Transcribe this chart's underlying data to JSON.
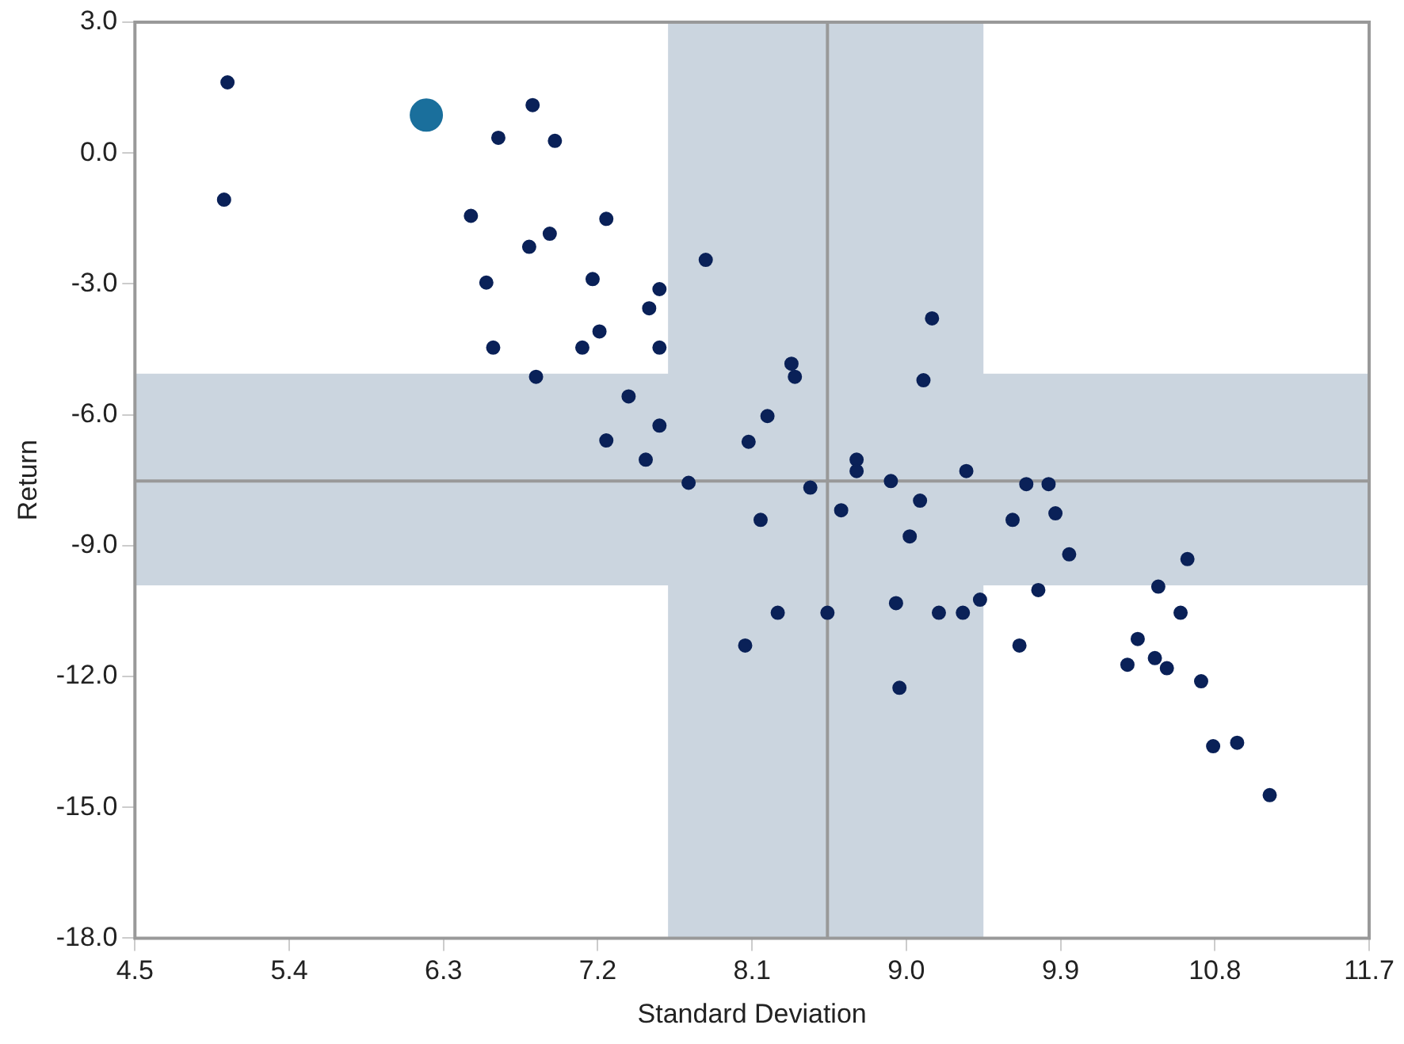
{
  "chart_data": {
    "type": "scatter",
    "xlabel": "Standard Deviation",
    "ylabel": "Return",
    "xlim": [
      4.5,
      11.7
    ],
    "xticks": [
      4.5,
      5.4,
      6.3,
      7.2,
      8.1,
      {
        "value": 9,
        "label": "9.0"
      },
      9.9,
      10.8,
      11.7
    ],
    "ylim": [
      -18,
      3
    ],
    "yticks": [
      {
        "value": -18,
        "label": "-18.0"
      },
      {
        "value": -15,
        "label": "-15.0"
      },
      {
        "value": -12,
        "label": "-12.0"
      },
      {
        "value": -9,
        "label": "-9.0"
      },
      {
        "value": -6,
        "label": "-6.0"
      },
      {
        "value": -3,
        "label": "-3.0"
      },
      {
        "value": 0,
        "label": "0.0"
      },
      {
        "value": 3,
        "label": "3.0"
      }
    ],
    "grid": false,
    "legend": false,
    "marker": "circle",
    "bands": [
      {
        "axis": "x",
        "from": 7.61,
        "to": 9.45,
        "color": "#cbd5df"
      },
      {
        "axis": "y",
        "from": -9.91,
        "to": -5.06,
        "color": "#cbd5df"
      }
    ],
    "ref_lines": [
      {
        "axis": "x",
        "value": 8.54,
        "color": "#999999"
      },
      {
        "axis": "y",
        "value": -7.52,
        "color": "#999999"
      }
    ],
    "series": [
      {
        "color": "#0a2158",
        "x": [
          5.04,
          5.02,
          6.82,
          6.62,
          6.95,
          6.46,
          7.25,
          6.92,
          6.8,
          7.83,
          6.55,
          7.17,
          7.56,
          7.5,
          6.59,
          7.11,
          7.21,
          7.56,
          6.84,
          7.38,
          7.56,
          7.25,
          7.48,
          7.73,
          9.15,
          8.33,
          8.35,
          9.1,
          8.19,
          8.08,
          8.71,
          8.71,
          8.91,
          9.35,
          8.44,
          8.62,
          8.15,
          9.02,
          9.08,
          9.62,
          9.7,
          9.83,
          9.87,
          9.95,
          9.77,
          8.94,
          8.25,
          8.54,
          9.19,
          9.33,
          9.43,
          8.06,
          9.66,
          8.96,
          10.64,
          10.47,
          10.6,
          10.35,
          10.29,
          10.45,
          10.52,
          10.72,
          10.79,
          10.93,
          11.12
        ],
        "values": [
          1.62,
          -1.07,
          1.1,
          0.35,
          0.28,
          -1.44,
          -1.51,
          -1.85,
          -2.15,
          -2.45,
          -2.97,
          -2.89,
          -3.12,
          -3.56,
          -4.46,
          -4.46,
          -4.09,
          -4.46,
          -5.13,
          -5.58,
          -6.25,
          -6.59,
          -7.03,
          -7.56,
          -3.79,
          -4.83,
          -5.13,
          -5.21,
          -6.03,
          -6.62,
          -7.03,
          -7.29,
          -7.52,
          -7.29,
          -7.67,
          -8.19,
          -8.41,
          -8.79,
          -7.97,
          -8.41,
          -7.59,
          -7.59,
          -8.26,
          -9.2,
          -10.02,
          -10.32,
          -10.54,
          -10.54,
          -10.54,
          -10.54,
          -10.24,
          -11.29,
          -11.29,
          -12.26,
          -9.31,
          -9.94,
          -10.54,
          -11.14,
          -11.73,
          -11.58,
          -11.81,
          -12.11,
          -13.6,
          -13.52,
          -14.72
        ]
      },
      {
        "color": "#1a6f9c",
        "x": [
          6.2
        ],
        "values": [
          0.87
        ]
      }
    ]
  }
}
